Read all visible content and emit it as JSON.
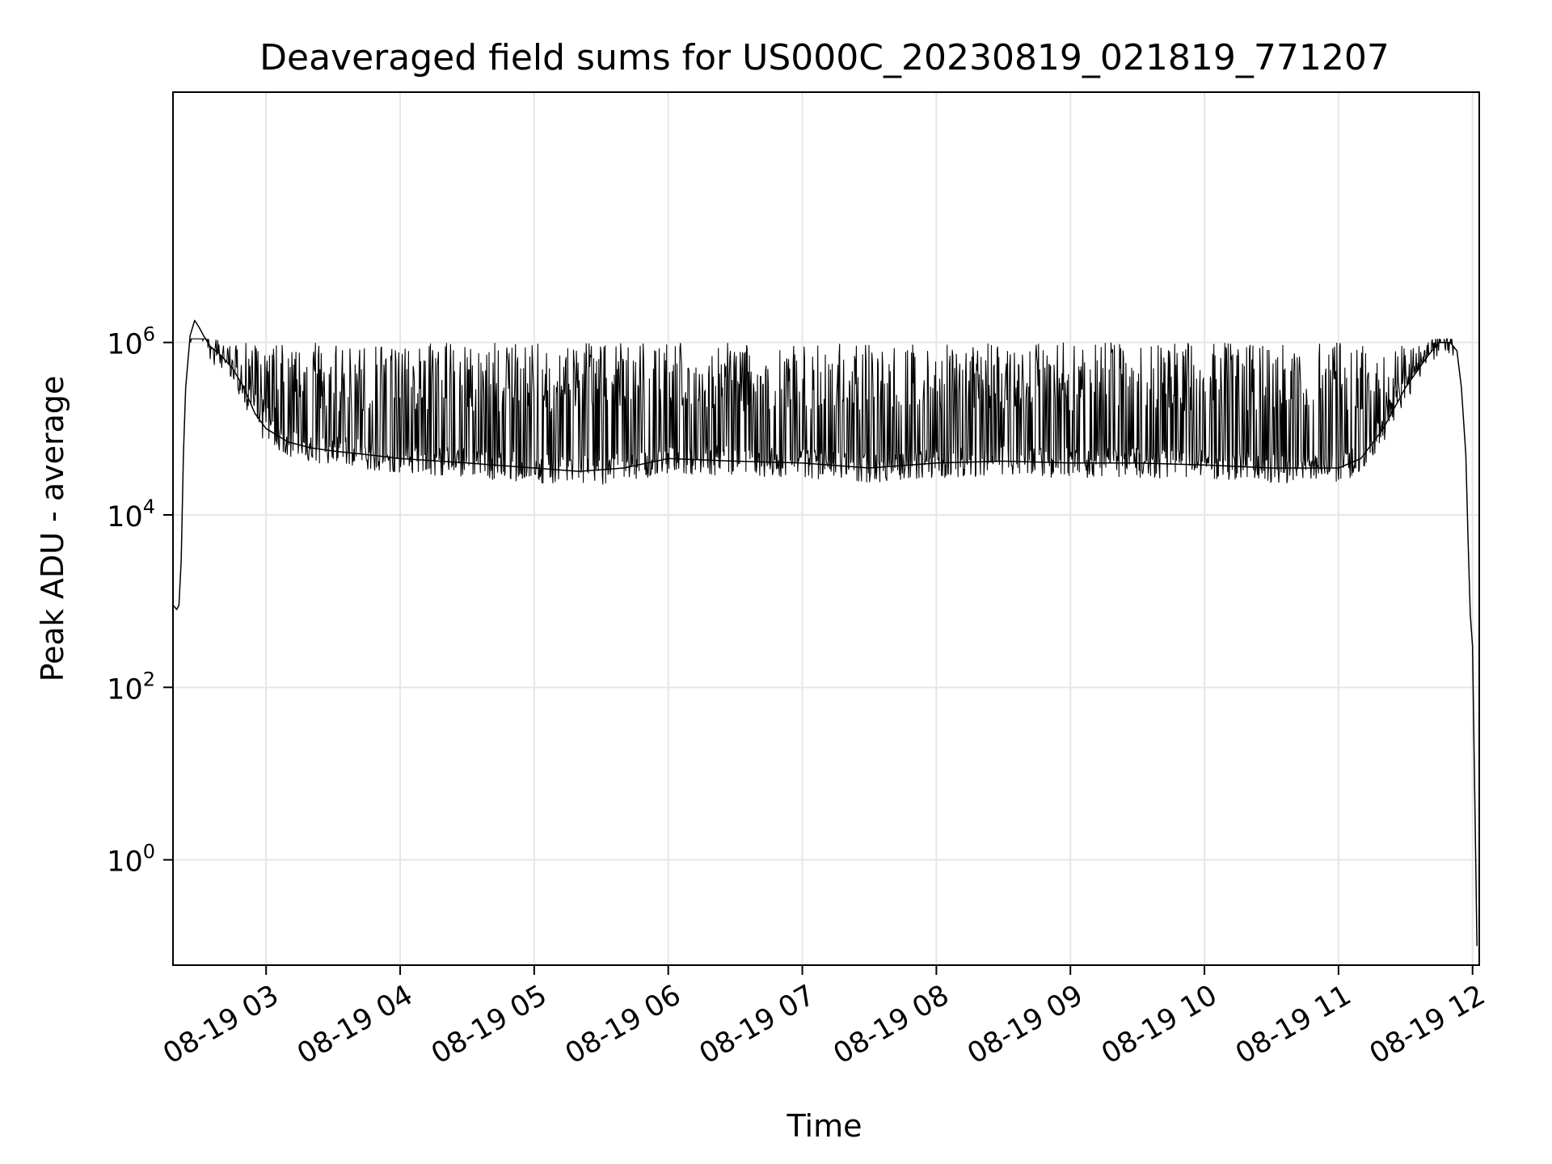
{
  "chart_data": {
    "type": "line",
    "title": "Deaveraged field sums for US000C_20230819_021819_771207",
    "xlabel": "Time",
    "ylabel": "Peak ADU - average",
    "yscale": "log",
    "xlim": [
      "2023-08-19 02:18:19",
      "2023-08-19 12:03:00"
    ],
    "ylim": [
      0.06,
      800000000
    ],
    "x_ticks": [
      "08-19 03",
      "08-19 04",
      "08-19 05",
      "08-19 06",
      "08-19 07",
      "08-19 08",
      "08-19 09",
      "08-19 10",
      "08-19 11",
      "08-19 12"
    ],
    "y_ticks": [
      {
        "base": "10",
        "exp": "0",
        "value": 1
      },
      {
        "base": "10",
        "exp": "2",
        "value": 100
      },
      {
        "base": "10",
        "exp": "4",
        "value": 10000
      },
      {
        "base": "10",
        "exp": "6",
        "value": 1000000
      }
    ],
    "grid": true,
    "line_color": "#000000",
    "series": [
      {
        "x": [
          "2023-08-19 02:18:19",
          "2023-08-19 02:20:00",
          "2023-08-19 02:21:00",
          "2023-08-19 02:22:00",
          "2023-08-19 02:23:00",
          "2023-08-19 02:24:00",
          "2023-08-19 02:26:00",
          "2023-08-19 02:28:00",
          "2023-08-19 02:30:00",
          "2023-08-19 02:32:00",
          "2023-08-19 02:35:00",
          "2023-08-19 02:40:00",
          "2023-08-19 02:45:00",
          "2023-08-19 02:50:00",
          "2023-08-19 02:55:00",
          "2023-08-19 03:00:00",
          "2023-08-19 03:10:00",
          "2023-08-19 03:20:00",
          "2023-08-19 03:30:00",
          "2023-08-19 03:45:00",
          "2023-08-19 04:00:00",
          "2023-08-19 04:30:00",
          "2023-08-19 05:00:00",
          "2023-08-19 05:20:00",
          "2023-08-19 05:40:00",
          "2023-08-19 06:00:00",
          "2023-08-19 06:30:00",
          "2023-08-19 07:00:00",
          "2023-08-19 07:30:00",
          "2023-08-19 08:00:00",
          "2023-08-19 08:30:00",
          "2023-08-19 09:00:00",
          "2023-08-19 09:30:00",
          "2023-08-19 10:00:00",
          "2023-08-19 10:30:00",
          "2023-08-19 11:00:00",
          "2023-08-19 11:10:00",
          "2023-08-19 11:20:00",
          "2023-08-19 11:30:00",
          "2023-08-19 11:40:00",
          "2023-08-19 11:45:00",
          "2023-08-19 11:50:00",
          "2023-08-19 11:53:00",
          "2023-08-19 11:55:00",
          "2023-08-19 11:57:00",
          "2023-08-19 11:58:00",
          "2023-08-19 11:59:00",
          "2023-08-19 12:00:00",
          "2023-08-19 12:01:00",
          "2023-08-19 12:02:00"
        ],
        "y": [
          900,
          800,
          900,
          3000,
          50000,
          300000,
          1200000,
          1800000,
          1500000,
          1200000,
          900000,
          700000,
          500000,
          300000,
          150000,
          100000,
          70000,
          60000,
          55000,
          50000,
          45000,
          40000,
          35000,
          32000,
          35000,
          45000,
          42000,
          40000,
          35000,
          40000,
          42000,
          40000,
          40000,
          38000,
          35000,
          35000,
          45000,
          100000,
          300000,
          700000,
          1000000,
          1000000,
          800000,
          300000,
          50000,
          5000,
          700,
          300,
          5,
          0.1
        ]
      }
    ]
  }
}
